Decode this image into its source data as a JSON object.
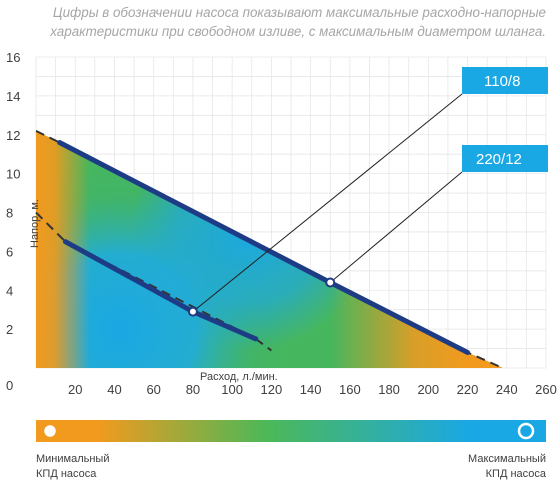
{
  "caption": {
    "line1": "Цифры в обозначении насоса показывают максимальные расходно-напорные",
    "line2": "характеристики при свободном изливе, с максимальным диаметром шланга."
  },
  "chart_data": {
    "type": "line",
    "xlabel": "Расход, л./мин.",
    "ylabel": "Напор, м.",
    "xlim": [
      0,
      260
    ],
    "ylim": [
      0,
      16
    ],
    "xticks": [
      "20",
      "40",
      "60",
      "80",
      "100",
      "120",
      "140",
      "160",
      "180",
      "200",
      "220",
      "240",
      "260"
    ],
    "yticks": [
      "16",
      "14",
      "12",
      "10",
      "8",
      "6",
      "4",
      "2",
      "0"
    ],
    "grid": true,
    "series": [
      {
        "name": "110/8",
        "x": [
          15,
          80,
          112
        ],
        "y": [
          6.5,
          2.9,
          1.5
        ],
        "marker_x": 80,
        "marker_y": 2.9,
        "dashed_extension": [
          [
            0,
            8
          ],
          [
            15,
            6.5
          ],
          [
            112,
            1.5
          ],
          [
            120,
            0.9
          ]
        ]
      },
      {
        "name": "220/12",
        "x": [
          12,
          150,
          220
        ],
        "y": [
          11.6,
          4.4,
          0.8
        ],
        "marker_x": 150,
        "marker_y": 4.4,
        "dashed_extension": [
          [
            0,
            12.2
          ],
          [
            12,
            11.6
          ],
          [
            220,
            0.8
          ],
          [
            238,
            0
          ]
        ]
      }
    ],
    "colorbar": {
      "min_label": "Минимальный\nКПД насоса",
      "max_label": "Максимальный\nКПД насоса"
    },
    "colors": {
      "low": "#F29A1E",
      "mid": "#44B85A",
      "high": "#1AA8E4",
      "curve": "#1E3C86",
      "label_box": "#1AA8E4"
    }
  }
}
